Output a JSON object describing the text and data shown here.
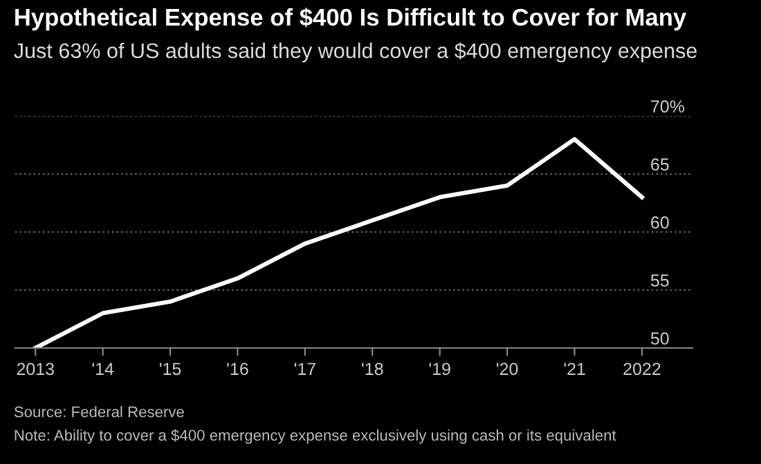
{
  "chart_data": {
    "type": "line",
    "title": "Hypothetical Expense of $400 Is Difficult to Cover for Many",
    "subtitle": "Just 63% of US adults said they would cover a $400 emergency expense",
    "categories": [
      "2013",
      "'14",
      "'15",
      "'16",
      "'17",
      "'18",
      "'19",
      "'20",
      "'21",
      "2022"
    ],
    "series": [
      {
        "color": "#ffffff",
        "values": [
          50,
          53,
          54,
          56,
          59,
          61,
          63,
          64,
          68,
          63
        ]
      }
    ],
    "ylim": [
      50,
      70
    ],
    "yticks": [
      50,
      55,
      60,
      65,
      {
        "value": 70,
        "label": "70%"
      }
    ],
    "grid": "y",
    "marker": "none",
    "line_style": "solid",
    "annotations": [
      "Source: Federal Reserve",
      "Note: Ability to cover a $400 emergency expense exclusively using cash or its equivalent"
    ]
  }
}
